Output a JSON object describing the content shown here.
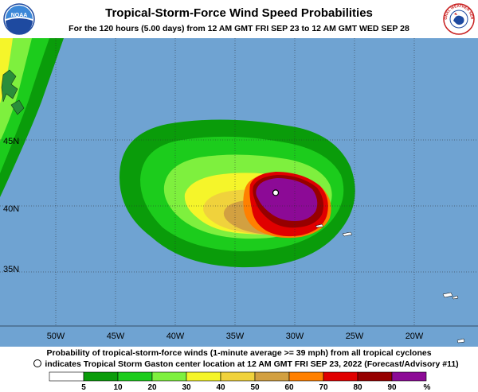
{
  "header": {
    "title": "Tropical-Storm-Force Wind Speed Probabilities",
    "subtitle": "For the 120 hours (5.00 days) from 12 AM GMT FRI SEP 23 to 12 AM GMT WED SEP 28",
    "logo_left": "NOAA",
    "logo_right": "NATIONAL WEATHER SERVICE"
  },
  "map": {
    "ocean_color": "#6fa3d2",
    "land_color": "#ffffff",
    "lat_labels": [
      "45N",
      "40N",
      "35N"
    ],
    "lon_labels": [
      "50W",
      "45W",
      "40W",
      "35W",
      "30W",
      "25W",
      "20W"
    ],
    "storm_center": {
      "lon": -31.6,
      "lat": 41.0
    },
    "contour_colors": [
      "#ffffff",
      "#0a9c0a",
      "#1ccc1c",
      "#7ef03e",
      "#f5f52a",
      "#f0d23c",
      "#d2a041",
      "#ff8000",
      "#e00000",
      "#960000",
      "#8c0a96"
    ]
  },
  "footer": {
    "line1": "Probability of tropical-storm-force winds (1-minute average >= 39 mph) from all tropical cyclones",
    "line2": "indicates Tropical Storm Gaston center location at 12 AM GMT FRI SEP 23, 2022 (Forecast/Advisory #11)"
  },
  "legend": {
    "labels": [
      "5",
      "10",
      "20",
      "30",
      "40",
      "50",
      "60",
      "70",
      "80",
      "90",
      "%"
    ],
    "colors": [
      "#ffffff",
      "#0a9c0a",
      "#1ccc1c",
      "#7ef03e",
      "#f5f52a",
      "#f0d23c",
      "#d2a041",
      "#ff8000",
      "#e00000",
      "#960000",
      "#8c0a96"
    ]
  }
}
